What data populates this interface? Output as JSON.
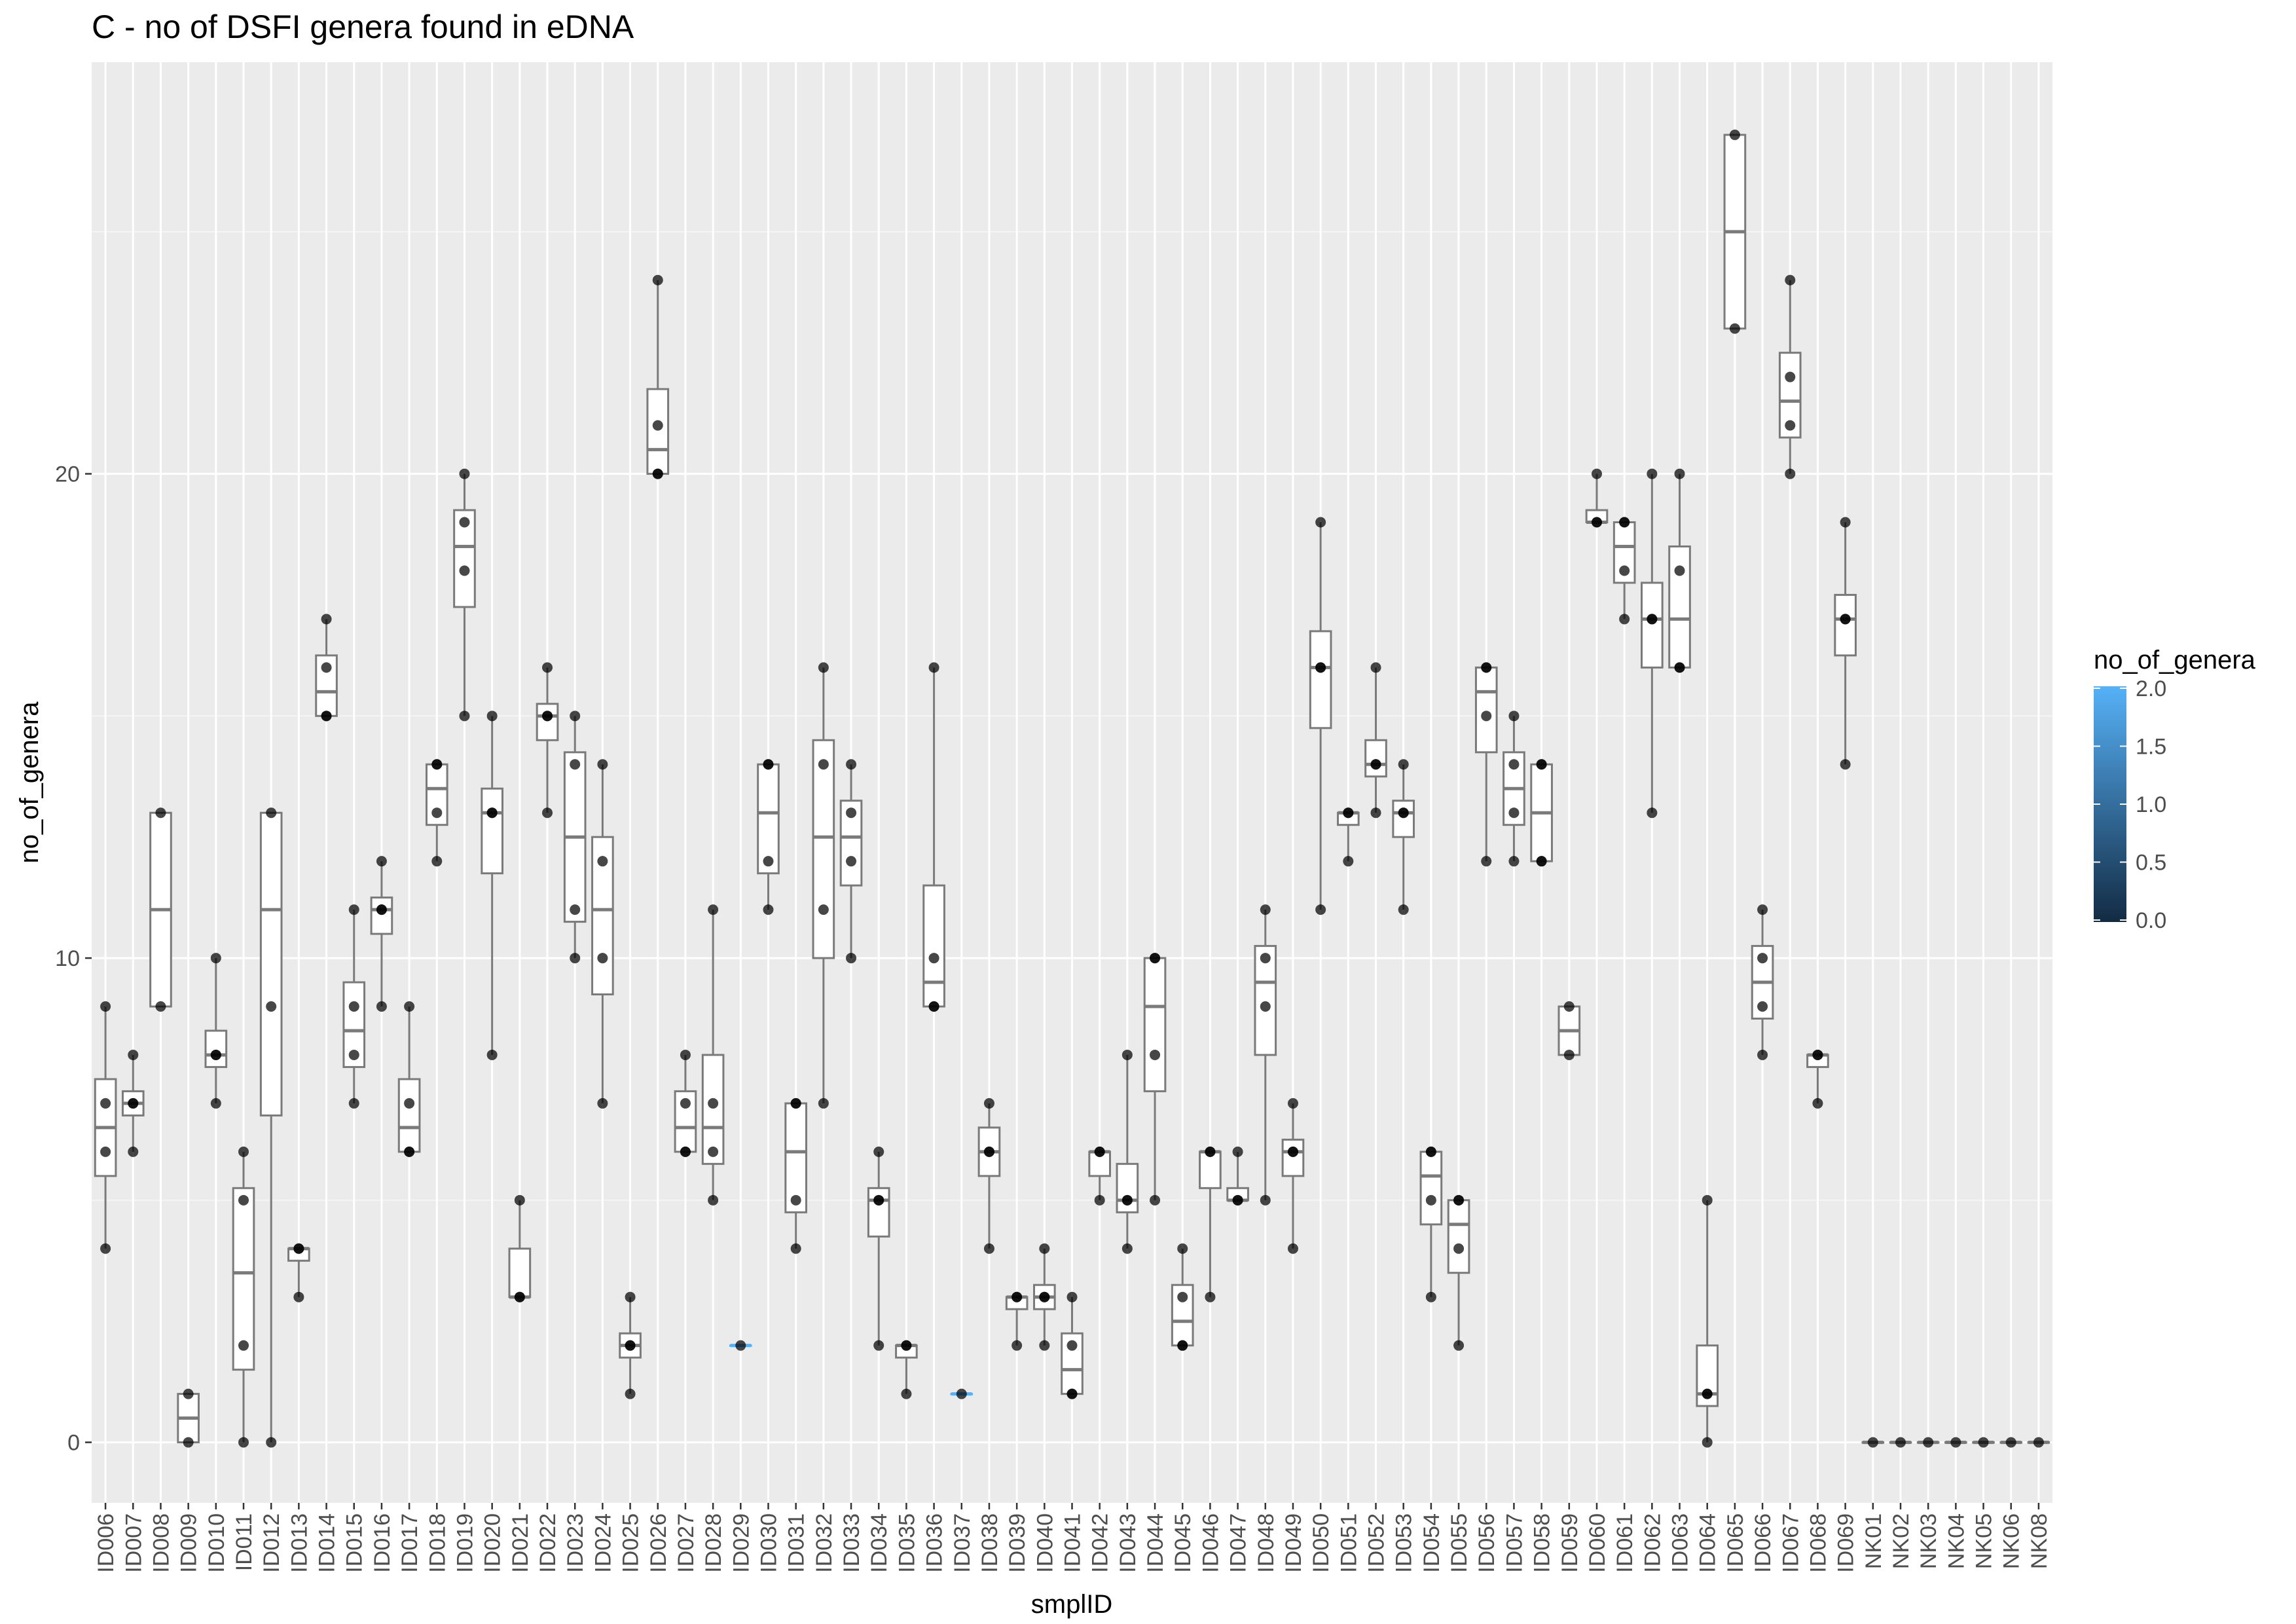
{
  "chart_data": {
    "type": "boxplot",
    "title": "C - no of DSFI genera found in eDNA",
    "xlabel": "smplID",
    "ylabel": "no_of_genera",
    "ylim": [
      -1.25,
      28.5
    ],
    "y_ticks": [
      0,
      10,
      20
    ],
    "grid": true,
    "legend": {
      "title": "no_of_genera",
      "position": "right",
      "ticks": [
        "2.0",
        "1.5",
        "1.0",
        "0.5",
        "0.0"
      ],
      "colors": [
        "#56B1F7",
        "#132B43"
      ]
    },
    "colors": {
      "panel": "#EBEBEB",
      "grid_major": "#FFFFFF",
      "box_stroke": "#7a7a7a",
      "point": "#000000",
      "tick_text": "#4d4d4d"
    },
    "categories": [
      "ID006",
      "ID007",
      "ID008",
      "ID009",
      "ID010",
      "ID011",
      "ID012",
      "ID013",
      "ID014",
      "ID015",
      "ID016",
      "ID017",
      "ID018",
      "ID019",
      "ID020",
      "ID021",
      "ID022",
      "ID023",
      "ID024",
      "ID025",
      "ID026",
      "ID027",
      "ID028",
      "ID029",
      "ID030",
      "ID031",
      "ID032",
      "ID033",
      "ID034",
      "ID035",
      "ID036",
      "ID037",
      "ID038",
      "ID039",
      "ID040",
      "ID041",
      "ID042",
      "ID043",
      "ID044",
      "ID045",
      "ID046",
      "ID047",
      "ID048",
      "ID049",
      "ID050",
      "ID051",
      "ID052",
      "ID053",
      "ID054",
      "ID055",
      "ID056",
      "ID057",
      "ID058",
      "ID059",
      "ID060",
      "ID061",
      "ID062",
      "ID063",
      "ID064",
      "ID065",
      "ID066",
      "ID067",
      "ID068",
      "ID069",
      "NK01",
      "NK02",
      "NK03",
      "NK04",
      "NK05",
      "NK06",
      "NK08"
    ],
    "boxes": [
      {
        "q1": 5.5,
        "median": 6.5,
        "q3": 7.5,
        "wlo": 4,
        "whi": 9,
        "points": [
          4,
          6,
          7,
          9
        ]
      },
      {
        "q1": 6.75,
        "median": 7,
        "q3": 7.25,
        "wlo": 6,
        "whi": 8,
        "points": [
          6,
          7,
          7,
          8
        ]
      },
      {
        "q1": 9,
        "median": 11,
        "q3": 13,
        "wlo": 9,
        "whi": 13,
        "points": [
          9,
          13
        ]
      },
      {
        "q1": 0,
        "median": 0.5,
        "q3": 1,
        "wlo": 0,
        "whi": 1,
        "points": [
          0,
          1
        ]
      },
      {
        "q1": 7.75,
        "median": 8,
        "q3": 8.5,
        "wlo": 7,
        "whi": 10,
        "points": [
          7,
          8,
          8,
          10
        ]
      },
      {
        "q1": 1.5,
        "median": 3.5,
        "q3": 5.25,
        "wlo": 0,
        "whi": 6,
        "points": [
          0,
          2,
          5,
          6
        ]
      },
      {
        "q1": 6.75,
        "median": 11,
        "q3": 13,
        "wlo": 0,
        "whi": 13,
        "points": [
          0,
          9,
          13
        ]
      },
      {
        "q1": 3.75,
        "median": 4,
        "q3": 4,
        "wlo": 3,
        "whi": 4,
        "points": [
          3,
          4,
          4
        ]
      },
      {
        "q1": 15,
        "median": 15.5,
        "q3": 16.25,
        "wlo": 15,
        "whi": 17,
        "points": [
          15,
          15,
          16,
          17
        ]
      },
      {
        "q1": 7.75,
        "median": 8.5,
        "q3": 9.5,
        "wlo": 7,
        "whi": 11,
        "points": [
          7,
          8,
          9,
          11
        ]
      },
      {
        "q1": 10.5,
        "median": 11,
        "q3": 11.25,
        "wlo": 9,
        "whi": 12,
        "points": [
          9,
          11,
          11,
          12
        ]
      },
      {
        "q1": 6,
        "median": 6.5,
        "q3": 7.5,
        "wlo": 6,
        "whi": 9,
        "points": [
          6,
          6,
          7,
          9
        ]
      },
      {
        "q1": 12.75,
        "median": 13.5,
        "q3": 14,
        "wlo": 12,
        "whi": 14,
        "points": [
          12,
          13,
          14,
          14
        ]
      },
      {
        "q1": 17.25,
        "median": 18.5,
        "q3": 19.25,
        "wlo": 15,
        "whi": 20,
        "points": [
          15,
          18,
          19,
          20
        ]
      },
      {
        "q1": 11.75,
        "median": 13,
        "q3": 13.5,
        "wlo": 8,
        "whi": 15,
        "points": [
          8,
          13,
          13,
          15
        ]
      },
      {
        "q1": 3,
        "median": 3,
        "q3": 4,
        "wlo": 3,
        "whi": 5,
        "points": [
          3,
          3,
          5
        ]
      },
      {
        "q1": 14.5,
        "median": 15,
        "q3": 15.25,
        "wlo": 13,
        "whi": 16,
        "points": [
          13,
          15,
          15,
          16
        ]
      },
      {
        "q1": 10.75,
        "median": 12.5,
        "q3": 14.25,
        "wlo": 10,
        "whi": 15,
        "points": [
          10,
          11,
          14,
          15
        ]
      },
      {
        "q1": 9.25,
        "median": 11,
        "q3": 12.5,
        "wlo": 7,
        "whi": 14,
        "points": [
          7,
          10,
          12,
          14
        ]
      },
      {
        "q1": 1.75,
        "median": 2,
        "q3": 2.25,
        "wlo": 1,
        "whi": 3,
        "points": [
          1,
          2,
          2,
          3
        ]
      },
      {
        "q1": 20,
        "median": 20.5,
        "q3": 21.75,
        "wlo": 20,
        "whi": 24,
        "points": [
          20,
          20,
          21,
          24
        ]
      },
      {
        "q1": 6,
        "median": 6.5,
        "q3": 7.25,
        "wlo": 6,
        "whi": 8,
        "points": [
          6,
          6,
          7,
          8
        ]
      },
      {
        "q1": 5.75,
        "median": 6.5,
        "q3": 8,
        "wlo": 5,
        "whi": 11,
        "points": [
          5,
          6,
          7,
          11
        ]
      },
      {
        "q1": 2,
        "median": 2,
        "q3": 2,
        "wlo": 2,
        "whi": 2,
        "points": [
          2
        ],
        "color": "#56B1F7"
      },
      {
        "q1": 11.75,
        "median": 13,
        "q3": 14,
        "wlo": 11,
        "whi": 14,
        "points": [
          11,
          12,
          14,
          14
        ]
      },
      {
        "q1": 4.75,
        "median": 6,
        "q3": 7,
        "wlo": 4,
        "whi": 7,
        "points": [
          4,
          5,
          7,
          7
        ]
      },
      {
        "q1": 10,
        "median": 12.5,
        "q3": 14.5,
        "wlo": 7,
        "whi": 16,
        "points": [
          7,
          11,
          14,
          16
        ]
      },
      {
        "q1": 11.5,
        "median": 12.5,
        "q3": 13.25,
        "wlo": 10,
        "whi": 14,
        "points": [
          10,
          12,
          13,
          14
        ]
      },
      {
        "q1": 4.25,
        "median": 5,
        "q3": 5.25,
        "wlo": 2,
        "whi": 6,
        "points": [
          2,
          5,
          5,
          6
        ]
      },
      {
        "q1": 1.75,
        "median": 2,
        "q3": 2,
        "wlo": 1,
        "whi": 2,
        "points": [
          1,
          2,
          2
        ]
      },
      {
        "q1": 9,
        "median": 9.5,
        "q3": 11.5,
        "wlo": 9,
        "whi": 16,
        "points": [
          9,
          9,
          10,
          16
        ]
      },
      {
        "q1": 1,
        "median": 1,
        "q3": 1,
        "wlo": 1,
        "whi": 1,
        "points": [
          1
        ],
        "color": "#56B1F7"
      },
      {
        "q1": 5.5,
        "median": 6,
        "q3": 6.5,
        "wlo": 4,
        "whi": 7,
        "points": [
          4,
          6,
          6,
          7
        ]
      },
      {
        "q1": 2.75,
        "median": 3,
        "q3": 3,
        "wlo": 2,
        "whi": 3,
        "points": [
          2,
          3,
          3
        ]
      },
      {
        "q1": 2.75,
        "median": 3,
        "q3": 3.25,
        "wlo": 2,
        "whi": 4,
        "points": [
          2,
          3,
          3,
          4
        ]
      },
      {
        "q1": 1,
        "median": 1.5,
        "q3": 2.25,
        "wlo": 1,
        "whi": 3,
        "points": [
          1,
          1,
          2,
          3
        ]
      },
      {
        "q1": 5.5,
        "median": 6,
        "q3": 6,
        "wlo": 5,
        "whi": 6,
        "points": [
          5,
          6,
          6
        ]
      },
      {
        "q1": 4.75,
        "median": 5,
        "q3": 5.75,
        "wlo": 4,
        "whi": 8,
        "points": [
          4,
          5,
          5,
          8
        ]
      },
      {
        "q1": 7.25,
        "median": 9,
        "q3": 10,
        "wlo": 5,
        "whi": 10,
        "points": [
          5,
          8,
          10,
          10
        ]
      },
      {
        "q1": 2,
        "median": 2.5,
        "q3": 3.25,
        "wlo": 2,
        "whi": 4,
        "points": [
          2,
          2,
          3,
          4
        ]
      },
      {
        "q1": 5.25,
        "median": 6,
        "q3": 6,
        "wlo": 3,
        "whi": 6,
        "points": [
          3,
          6,
          6
        ]
      },
      {
        "q1": 5,
        "median": 5,
        "q3": 5.25,
        "wlo": 5,
        "whi": 6,
        "points": [
          5,
          5,
          6
        ]
      },
      {
        "q1": 8,
        "median": 9.5,
        "q3": 10.25,
        "wlo": 5,
        "whi": 11,
        "points": [
          5,
          9,
          10,
          11
        ]
      },
      {
        "q1": 5.5,
        "median": 6,
        "q3": 6.25,
        "wlo": 4,
        "whi": 7,
        "points": [
          4,
          6,
          6,
          7
        ]
      },
      {
        "q1": 14.75,
        "median": 16,
        "q3": 16.75,
        "wlo": 11,
        "whi": 19,
        "points": [
          11,
          16,
          16,
          19
        ]
      },
      {
        "q1": 12.75,
        "median": 13,
        "q3": 13,
        "wlo": 12,
        "whi": 13,
        "points": [
          12,
          13,
          13
        ]
      },
      {
        "q1": 13.75,
        "median": 14,
        "q3": 14.5,
        "wlo": 13,
        "whi": 16,
        "points": [
          13,
          14,
          14,
          16
        ]
      },
      {
        "q1": 12.5,
        "median": 13,
        "q3": 13.25,
        "wlo": 11,
        "whi": 14,
        "points": [
          11,
          13,
          13,
          14
        ]
      },
      {
        "q1": 4.5,
        "median": 5.5,
        "q3": 6,
        "wlo": 3,
        "whi": 6,
        "points": [
          3,
          5,
          6,
          6
        ]
      },
      {
        "q1": 3.5,
        "median": 4.5,
        "q3": 5,
        "wlo": 2,
        "whi": 5,
        "points": [
          2,
          4,
          5,
          5
        ]
      },
      {
        "q1": 14.25,
        "median": 15.5,
        "q3": 16,
        "wlo": 12,
        "whi": 16,
        "points": [
          12,
          15,
          16,
          16
        ]
      },
      {
        "q1": 12.75,
        "median": 13.5,
        "q3": 14.25,
        "wlo": 12,
        "whi": 15,
        "points": [
          12,
          13,
          14,
          15
        ]
      },
      {
        "q1": 12,
        "median": 13,
        "q3": 14,
        "wlo": 12,
        "whi": 14,
        "points": [
          12,
          12,
          14,
          14
        ]
      },
      {
        "q1": 8,
        "median": 8.5,
        "q3": 9,
        "wlo": 8,
        "whi": 9,
        "points": [
          8,
          9
        ]
      },
      {
        "q1": 19,
        "median": 19,
        "q3": 19.25,
        "wlo": 19,
        "whi": 20,
        "points": [
          19,
          19,
          20
        ]
      },
      {
        "q1": 17.75,
        "median": 18.5,
        "q3": 19,
        "wlo": 17,
        "whi": 19,
        "points": [
          17,
          18,
          19,
          19
        ]
      },
      {
        "q1": 16,
        "median": 17,
        "q3": 17.75,
        "wlo": 13,
        "whi": 20,
        "points": [
          13,
          17,
          17,
          20
        ]
      },
      {
        "q1": 16,
        "median": 17,
        "q3": 18.5,
        "wlo": 16,
        "whi": 20,
        "points": [
          16,
          16,
          18,
          20
        ]
      },
      {
        "q1": 0.75,
        "median": 1,
        "q3": 2,
        "wlo": 0,
        "whi": 5,
        "points": [
          0,
          1,
          1,
          5
        ]
      },
      {
        "q1": 23,
        "median": 25,
        "q3": 27,
        "wlo": 23,
        "whi": 27,
        "points": [
          23,
          27
        ]
      },
      {
        "q1": 8.75,
        "median": 9.5,
        "q3": 10.25,
        "wlo": 8,
        "whi": 11,
        "points": [
          8,
          9,
          10,
          11
        ]
      },
      {
        "q1": 20.75,
        "median": 21.5,
        "q3": 22.5,
        "wlo": 20,
        "whi": 24,
        "points": [
          20,
          21,
          22,
          24
        ]
      },
      {
        "q1": 7.75,
        "median": 8,
        "q3": 8,
        "wlo": 7,
        "whi": 8,
        "points": [
          7,
          8,
          8
        ]
      },
      {
        "q1": 16.25,
        "median": 17,
        "q3": 17.5,
        "wlo": 14,
        "whi": 19,
        "points": [
          14,
          17,
          17,
          19
        ]
      },
      {
        "q1": 0,
        "median": 0,
        "q3": 0,
        "wlo": 0,
        "whi": 0,
        "points": [
          0
        ]
      },
      {
        "q1": 0,
        "median": 0,
        "q3": 0,
        "wlo": 0,
        "whi": 0,
        "points": [
          0
        ]
      },
      {
        "q1": 0,
        "median": 0,
        "q3": 0,
        "wlo": 0,
        "whi": 0,
        "points": [
          0
        ]
      },
      {
        "q1": 0,
        "median": 0,
        "q3": 0,
        "wlo": 0,
        "whi": 0,
        "points": [
          0
        ]
      },
      {
        "q1": 0,
        "median": 0,
        "q3": 0,
        "wlo": 0,
        "whi": 0,
        "points": [
          0
        ]
      },
      {
        "q1": 0,
        "median": 0,
        "q3": 0,
        "wlo": 0,
        "whi": 0,
        "points": [
          0
        ]
      },
      {
        "q1": 0,
        "median": 0,
        "q3": 0,
        "wlo": 0,
        "whi": 0,
        "points": [
          0
        ]
      }
    ]
  }
}
